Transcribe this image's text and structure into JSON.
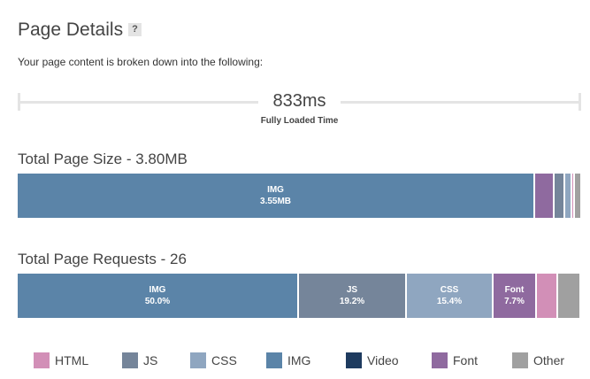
{
  "header": {
    "title": "Page Details",
    "help": "?",
    "subtitle": "Your page content is broken down into the following:"
  },
  "load_time": {
    "value": "833ms",
    "label": "Fully Loaded Time"
  },
  "size": {
    "title": "Total Page Size - 3.80MB",
    "segments": [
      {
        "type": "IMG",
        "label": "IMG",
        "value": "3.55MB",
        "fraction": 0.922,
        "color": "#5b84a8"
      },
      {
        "type": "Font",
        "label": "",
        "value": "",
        "fraction": 0.034,
        "color": "#8f6a9f"
      },
      {
        "type": "JS",
        "label": "",
        "value": "",
        "fraction": 0.019,
        "color": "#75859a"
      },
      {
        "type": "CSS",
        "label": "",
        "value": "",
        "fraction": 0.012,
        "color": "#8fa6c0"
      },
      {
        "type": "HTML",
        "label": "",
        "value": "",
        "fraction": 0.004,
        "color": "#d28fb7"
      },
      {
        "type": "Other",
        "label": "",
        "value": "",
        "fraction": 0.009,
        "color": "#a0a0a0"
      }
    ]
  },
  "requests": {
    "title": "Total Page Requests - 26",
    "segments": [
      {
        "type": "IMG",
        "label": "IMG",
        "value": "50.0%",
        "fraction": 0.5,
        "color": "#5b84a8"
      },
      {
        "type": "JS",
        "label": "JS",
        "value": "19.2%",
        "fraction": 0.192,
        "color": "#75859a"
      },
      {
        "type": "CSS",
        "label": "CSS",
        "value": "15.4%",
        "fraction": 0.154,
        "color": "#8fa6c0"
      },
      {
        "type": "Font",
        "label": "Font",
        "value": "7.7%",
        "fraction": 0.077,
        "color": "#8f6a9f"
      },
      {
        "type": "HTML",
        "label": "",
        "value": "",
        "fraction": 0.0385,
        "color": "#d28fb7"
      },
      {
        "type": "Other",
        "label": "",
        "value": "",
        "fraction": 0.0385,
        "color": "#a0a0a0"
      }
    ]
  },
  "legend": [
    {
      "label": "HTML",
      "color": "#d28fb7"
    },
    {
      "label": "JS",
      "color": "#75859a"
    },
    {
      "label": "CSS",
      "color": "#8fa6c0"
    },
    {
      "label": "IMG",
      "color": "#5b84a8"
    },
    {
      "label": "Video",
      "color": "#1e3b5f"
    },
    {
      "label": "Font",
      "color": "#8f6a9f"
    },
    {
      "label": "Other",
      "color": "#a0a0a0"
    }
  ]
}
